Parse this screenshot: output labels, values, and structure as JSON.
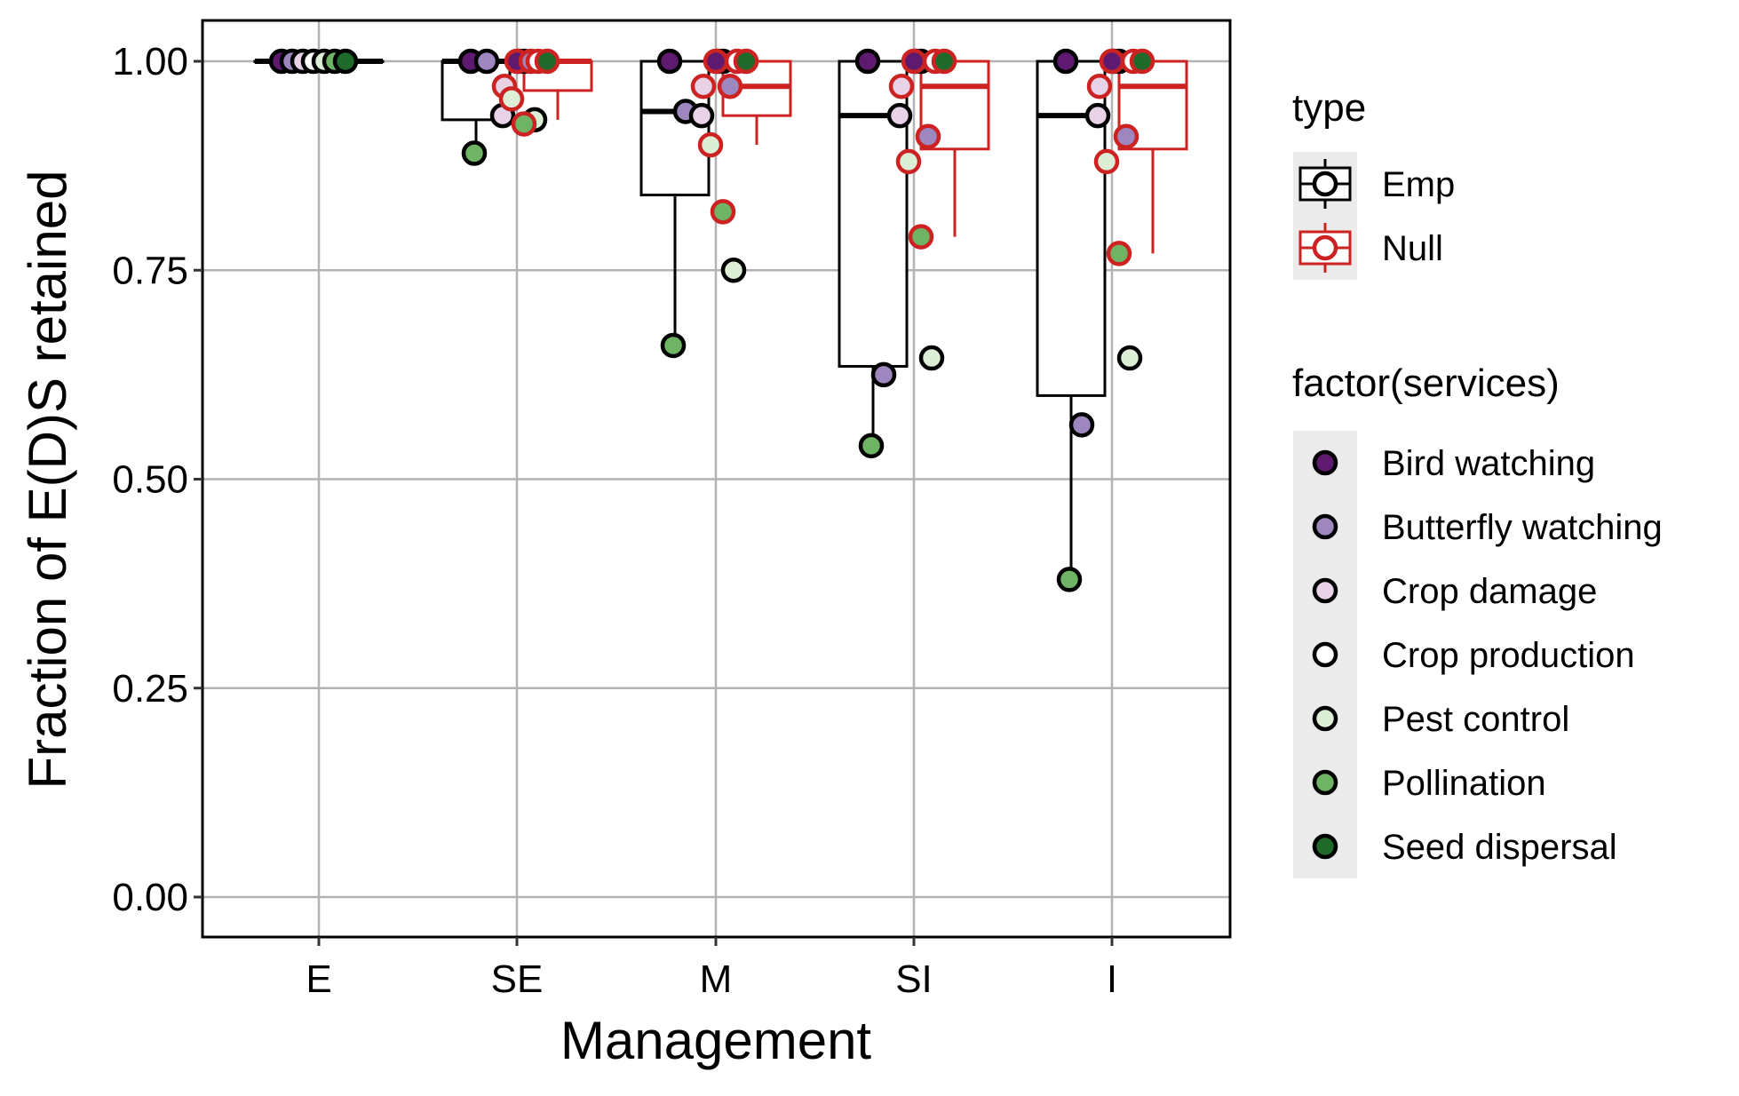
{
  "chart_data": {
    "type": "boxplot",
    "xlabel": "Management",
    "ylabel": "Fraction of E(D)S retained",
    "categories": [
      "E",
      "SE",
      "M",
      "SI",
      "I"
    ],
    "ylim": [
      -0.05,
      1.05
    ],
    "yticks": [
      "0.00",
      "0.25",
      "0.50",
      "0.75",
      "1.00"
    ],
    "ytick_values": [
      0,
      0.25,
      0.5,
      0.75,
      1.0
    ],
    "grid": true,
    "legend_type": {
      "title": "type",
      "entries": [
        {
          "name": "Emp",
          "color": "#000000"
        },
        {
          "name": "Null",
          "color": "#cc2222"
        }
      ]
    },
    "legend_services": {
      "title": "factor(services)",
      "entries": [
        {
          "name": "Bird watching",
          "color": "#5e1a6e"
        },
        {
          "name": "Butterfly watching",
          "color": "#9e86be"
        },
        {
          "name": "Crop damage",
          "color": "#e7d2e8"
        },
        {
          "name": "Crop production",
          "color": "#ffffff"
        },
        {
          "name": "Pest control",
          "color": "#dcefd6"
        },
        {
          "name": "Pollination",
          "color": "#6fb465"
        },
        {
          "name": "Seed dispersal",
          "color": "#1f6a2a"
        }
      ]
    },
    "boxes": {
      "Emp": [
        {
          "category": "E",
          "lower_whisker": 1.0,
          "q1": 1.0,
          "median": 1.0,
          "q3": 1.0,
          "upper_whisker": 1.0
        },
        {
          "category": "SE",
          "lower_whisker": 0.89,
          "q1": 0.93,
          "median": 1.0,
          "q3": 1.0,
          "upper_whisker": 1.0
        },
        {
          "category": "M",
          "lower_whisker": 0.66,
          "q1": 0.84,
          "median": 0.94,
          "q3": 1.0,
          "upper_whisker": 1.0
        },
        {
          "category": "SI",
          "lower_whisker": 0.54,
          "q1": 0.635,
          "median": 0.935,
          "q3": 1.0,
          "upper_whisker": 1.0
        },
        {
          "category": "I",
          "lower_whisker": 0.38,
          "q1": 0.6,
          "median": 0.935,
          "q3": 1.0,
          "upper_whisker": 1.0
        }
      ],
      "Null": [
        {
          "category": "SE",
          "lower_whisker": 0.93,
          "q1": 0.965,
          "median": 1.0,
          "q3": 1.0,
          "upper_whisker": 1.0
        },
        {
          "category": "M",
          "lower_whisker": 0.9,
          "q1": 0.935,
          "median": 0.97,
          "q3": 1.0,
          "upper_whisker": 1.0
        },
        {
          "category": "SI",
          "lower_whisker": 0.79,
          "q1": 0.895,
          "median": 0.97,
          "q3": 1.0,
          "upper_whisker": 1.0
        },
        {
          "category": "I",
          "lower_whisker": 0.77,
          "q1": 0.895,
          "median": 0.97,
          "q3": 1.0,
          "upper_whisker": 1.0
        }
      ]
    },
    "points": {
      "Emp": [
        {
          "category": "E",
          "service": "Bird watching",
          "value": 1.0
        },
        {
          "category": "E",
          "service": "Butterfly watching",
          "value": 1.0
        },
        {
          "category": "E",
          "service": "Crop damage",
          "value": 1.0
        },
        {
          "category": "E",
          "service": "Crop production",
          "value": 1.0
        },
        {
          "category": "E",
          "service": "Pest control",
          "value": 1.0
        },
        {
          "category": "E",
          "service": "Pollination",
          "value": 1.0
        },
        {
          "category": "E",
          "service": "Seed dispersal",
          "value": 1.0
        },
        {
          "category": "SE",
          "service": "Bird watching",
          "value": 1.0
        },
        {
          "category": "SE",
          "service": "Butterfly watching",
          "value": 1.0
        },
        {
          "category": "SE",
          "service": "Crop damage",
          "value": 0.935
        },
        {
          "category": "SE",
          "service": "Crop production",
          "value": 1.0
        },
        {
          "category": "SE",
          "service": "Pest control",
          "value": 0.93
        },
        {
          "category": "SE",
          "service": "Pollination",
          "value": 0.89
        },
        {
          "category": "SE",
          "service": "Seed dispersal",
          "value": 1.0
        },
        {
          "category": "M",
          "service": "Bird watching",
          "value": 1.0
        },
        {
          "category": "M",
          "service": "Butterfly watching",
          "value": 0.94
        },
        {
          "category": "M",
          "service": "Crop damage",
          "value": 0.935
        },
        {
          "category": "M",
          "service": "Crop production",
          "value": 1.0
        },
        {
          "category": "M",
          "service": "Pest control",
          "value": 0.75
        },
        {
          "category": "M",
          "service": "Pollination",
          "value": 0.66
        },
        {
          "category": "M",
          "service": "Seed dispersal",
          "value": 1.0
        },
        {
          "category": "SI",
          "service": "Bird watching",
          "value": 1.0
        },
        {
          "category": "SI",
          "service": "Butterfly watching",
          "value": 0.625
        },
        {
          "category": "SI",
          "service": "Crop damage",
          "value": 0.935
        },
        {
          "category": "SI",
          "service": "Crop production",
          "value": 1.0
        },
        {
          "category": "SI",
          "service": "Pest control",
          "value": 0.645
        },
        {
          "category": "SI",
          "service": "Pollination",
          "value": 0.54
        },
        {
          "category": "SI",
          "service": "Seed dispersal",
          "value": 1.0
        },
        {
          "category": "I",
          "service": "Bird watching",
          "value": 1.0
        },
        {
          "category": "I",
          "service": "Butterfly watching",
          "value": 0.565
        },
        {
          "category": "I",
          "service": "Crop damage",
          "value": 0.935
        },
        {
          "category": "I",
          "service": "Crop production",
          "value": 1.0
        },
        {
          "category": "I",
          "service": "Pest control",
          "value": 0.645
        },
        {
          "category": "I",
          "service": "Pollination",
          "value": 0.38
        },
        {
          "category": "I",
          "service": "Seed dispersal",
          "value": 1.0
        }
      ],
      "Null": [
        {
          "category": "SE",
          "service": "Bird watching",
          "value": 1.0
        },
        {
          "category": "SE",
          "service": "Butterfly watching",
          "value": 1.0
        },
        {
          "category": "SE",
          "service": "Crop damage",
          "value": 0.97
        },
        {
          "category": "SE",
          "service": "Crop production",
          "value": 1.0
        },
        {
          "category": "SE",
          "service": "Pest control",
          "value": 0.955
        },
        {
          "category": "SE",
          "service": "Pollination",
          "value": 0.925
        },
        {
          "category": "SE",
          "service": "Seed dispersal",
          "value": 1.0
        },
        {
          "category": "M",
          "service": "Bird watching",
          "value": 1.0
        },
        {
          "category": "M",
          "service": "Butterfly watching",
          "value": 0.97
        },
        {
          "category": "M",
          "service": "Crop damage",
          "value": 0.97
        },
        {
          "category": "M",
          "service": "Crop production",
          "value": 1.0
        },
        {
          "category": "M",
          "service": "Pest control",
          "value": 0.9
        },
        {
          "category": "M",
          "service": "Pollination",
          "value": 0.82
        },
        {
          "category": "M",
          "service": "Seed dispersal",
          "value": 1.0
        },
        {
          "category": "SI",
          "service": "Bird watching",
          "value": 1.0
        },
        {
          "category": "SI",
          "service": "Butterfly watching",
          "value": 0.91
        },
        {
          "category": "SI",
          "service": "Crop damage",
          "value": 0.97
        },
        {
          "category": "SI",
          "service": "Crop production",
          "value": 1.0
        },
        {
          "category": "SI",
          "service": "Pest control",
          "value": 0.88
        },
        {
          "category": "SI",
          "service": "Pollination",
          "value": 0.79
        },
        {
          "category": "SI",
          "service": "Seed dispersal",
          "value": 1.0
        },
        {
          "category": "I",
          "service": "Bird watching",
          "value": 1.0
        },
        {
          "category": "I",
          "service": "Butterfly watching",
          "value": 0.91
        },
        {
          "category": "I",
          "service": "Crop damage",
          "value": 0.97
        },
        {
          "category": "I",
          "service": "Crop production",
          "value": 1.0
        },
        {
          "category": "I",
          "service": "Pest control",
          "value": 0.88
        },
        {
          "category": "I",
          "service": "Pollination",
          "value": 0.77
        },
        {
          "category": "I",
          "service": "Seed dispersal",
          "value": 1.0
        }
      ]
    }
  }
}
